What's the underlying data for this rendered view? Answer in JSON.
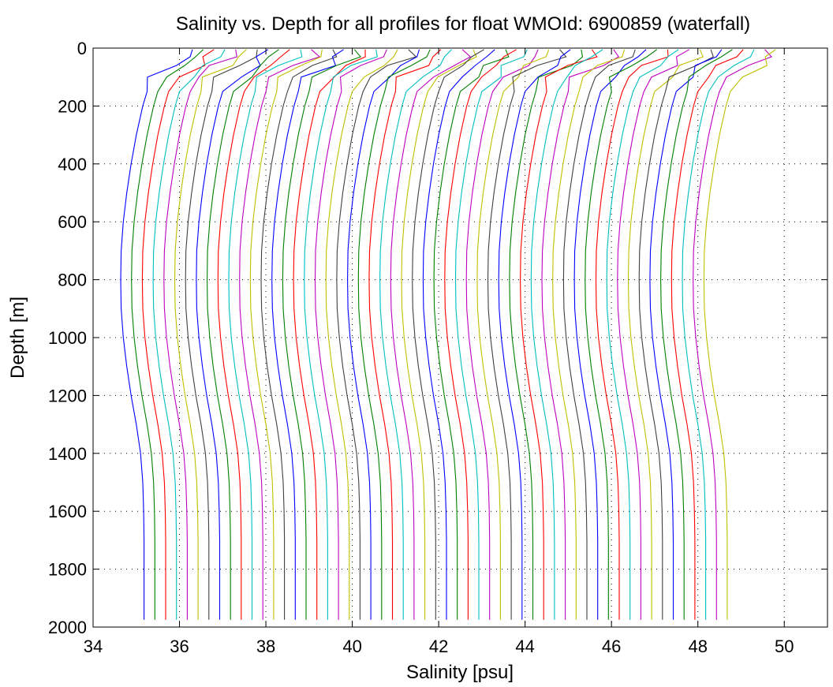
{
  "chart_data": {
    "type": "line",
    "title": "Salinity vs. Depth for all profiles for float WMOId: 6900859 (waterfall)",
    "xlabel": "Salinity [psu]",
    "ylabel": "Depth [m]",
    "xlim": [
      34,
      51
    ],
    "ylim": [
      0,
      2000
    ],
    "y_reversed": true,
    "grid": true,
    "legend": "none",
    "x_ticks": [
      34,
      36,
      38,
      40,
      42,
      44,
      46,
      48,
      50
    ],
    "y_ticks": [
      0,
      200,
      400,
      600,
      800,
      1000,
      1200,
      1400,
      1600,
      1800,
      2000
    ],
    "color_cycle": [
      "#0000ff",
      "#008000",
      "#ff0000",
      "#00bfbf",
      "#bf00bf",
      "#bfbf00",
      "#404040"
    ],
    "waterfall": {
      "profile_count": 55,
      "first_profile_surface_salinity": 36.3,
      "offset_per_profile": 0.25,
      "depths": [
        5,
        30,
        60,
        100,
        150,
        200,
        300,
        400,
        500,
        600,
        700,
        800,
        900,
        1000,
        1100,
        1200,
        1300,
        1400,
        1500,
        1600,
        1700,
        1800,
        1900,
        1975
      ],
      "anomaly": [
        0,
        -0.05,
        -0.4,
        -0.85,
        -1.05,
        -1.15,
        -1.3,
        -1.42,
        -1.52,
        -1.6,
        -1.65,
        -1.66,
        -1.65,
        -1.6,
        -1.52,
        -1.42,
        -1.3,
        -1.2,
        -1.15,
        -1.13,
        -1.12,
        -1.12,
        -1.12,
        -1.12
      ]
    }
  }
}
